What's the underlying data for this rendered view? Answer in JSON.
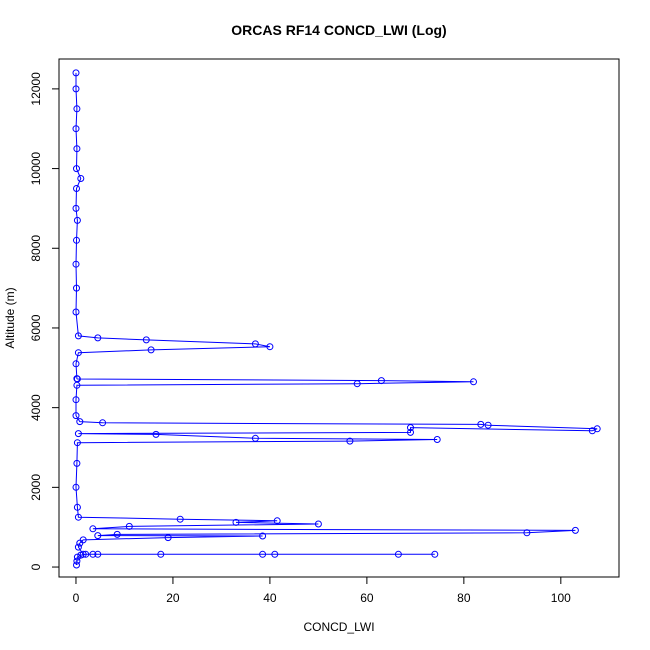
{
  "chart_data": {
    "type": "line",
    "title": "ORCAS RF14 CONCD_LWI (Log)",
    "xlabel": "CONCD_LWI",
    "ylabel": "Altitude (m)",
    "xlim": [
      -3.5,
      112
    ],
    "ylim": [
      -250,
      12750
    ],
    "xticks": [
      0,
      20,
      40,
      60,
      80,
      100
    ],
    "yticks": [
      0,
      2000,
      4000,
      6000,
      8000,
      10000,
      12000
    ],
    "grid": false,
    "legend": "none",
    "marker": "open-circle",
    "series": [
      {
        "name": "",
        "color": "#0000ff",
        "points": [
          [
            0,
            12400
          ],
          [
            0,
            12000
          ],
          [
            0.2,
            11500
          ],
          [
            0,
            11000
          ],
          [
            0.2,
            10500
          ],
          [
            0.1,
            10000
          ],
          [
            1,
            9750
          ],
          [
            0.1,
            9500
          ],
          [
            0,
            9000
          ],
          [
            0.3,
            8700
          ],
          [
            0.1,
            8200
          ],
          [
            0,
            7600
          ],
          [
            0.1,
            7000
          ],
          [
            0,
            6400
          ],
          [
            0.5,
            5800
          ],
          [
            4.5,
            5750
          ],
          [
            14.5,
            5700
          ],
          [
            37,
            5600
          ],
          [
            40,
            5530
          ],
          [
            15.5,
            5450
          ],
          [
            0.5,
            5380
          ],
          [
            0,
            5100
          ],
          [
            0.2,
            4730
          ],
          [
            0.3,
            4720
          ],
          [
            63,
            4680
          ],
          [
            82,
            4650
          ],
          [
            58,
            4600
          ],
          [
            0.2,
            4560
          ],
          [
            0,
            4200
          ],
          [
            0,
            3800
          ],
          [
            0.8,
            3650
          ],
          [
            5.5,
            3620
          ],
          [
            83.5,
            3580
          ],
          [
            85,
            3560
          ],
          [
            107.5,
            3470
          ],
          [
            106.5,
            3420
          ],
          [
            69,
            3500
          ],
          [
            69,
            3380
          ],
          [
            0.5,
            3350
          ],
          [
            16.5,
            3330
          ],
          [
            37,
            3230
          ],
          [
            74.5,
            3200
          ],
          [
            56.5,
            3160
          ],
          [
            0.3,
            3120
          ],
          [
            0.2,
            2600
          ],
          [
            0,
            2000
          ],
          [
            0.3,
            1500
          ],
          [
            0.5,
            1250
          ],
          [
            21.5,
            1200
          ],
          [
            41.5,
            1160
          ],
          [
            33,
            1120
          ],
          [
            50,
            1080
          ],
          [
            11,
            1020
          ],
          [
            3.5,
            960
          ],
          [
            103,
            920
          ],
          [
            93,
            860
          ],
          [
            8.5,
            820
          ],
          [
            4.5,
            790
          ],
          [
            38.5,
            780
          ],
          [
            19,
            740
          ],
          [
            1.5,
            680
          ],
          [
            0.8,
            600
          ],
          [
            0.5,
            500
          ],
          [
            1.5,
            320
          ],
          [
            3.5,
            320
          ],
          [
            4.5,
            320
          ],
          [
            17.5,
            320
          ],
          [
            38.5,
            320
          ],
          [
            41,
            320
          ],
          [
            66.5,
            320
          ],
          [
            74,
            320
          ],
          [
            2,
            320
          ],
          [
            1,
            300
          ],
          [
            0.3,
            250
          ],
          [
            0.2,
            150
          ],
          [
            0.1,
            50
          ]
        ]
      }
    ]
  }
}
